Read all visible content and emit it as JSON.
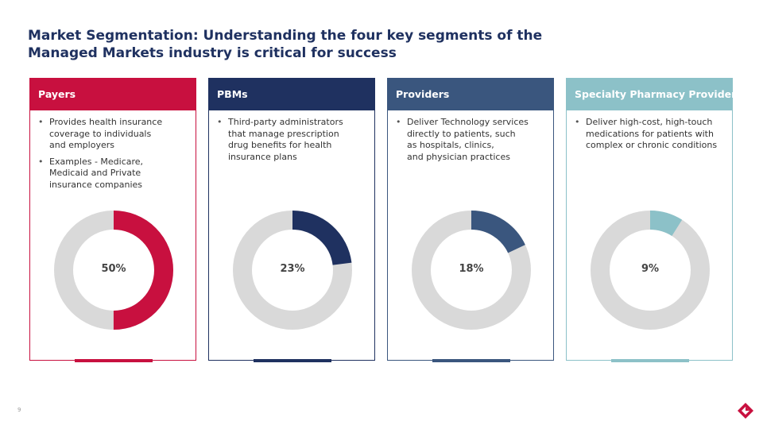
{
  "title": {
    "line1": "Market Segmentation: Understanding the four key segments of the",
    "line2": "Managed Markets industry is critical for success"
  },
  "cards": [
    {
      "title": "Payers",
      "color": "#c8103f",
      "bullets": [
        [
          "Provides health insurance",
          "coverage to individuals",
          "and employers"
        ],
        [
          "Examples - Medicare,",
          "Medicaid and Private",
          "insurance companies"
        ]
      ],
      "percent_label": "50%",
      "percent": 50
    },
    {
      "title": "PBMs",
      "color": "#1f3160",
      "bullets": [
        [
          "Third-party administrators",
          "that manage prescription",
          "drug benefits for health",
          "insurance plans"
        ]
      ],
      "percent_label": "23%",
      "percent": 23
    },
    {
      "title": "Providers",
      "color": "#3a567e",
      "bullets": [
        [
          "Deliver Technology services",
          "directly to patients, such",
          "as hospitals, clinics,",
          "and physician practices"
        ]
      ],
      "percent_label": "18%",
      "percent": 18
    },
    {
      "title": "Specialty Pharmacy Providers",
      "color": "#8cc1c8",
      "bullets": [
        [
          "Deliver high-cost, high-touch",
          "medications for patients with",
          "complex or chronic conditions"
        ]
      ],
      "percent_label": "9%",
      "percent": 9
    }
  ],
  "ring_track_color": "#d9d9d9",
  "page_number": "9",
  "logo_icon": "diamond-logo-icon"
}
